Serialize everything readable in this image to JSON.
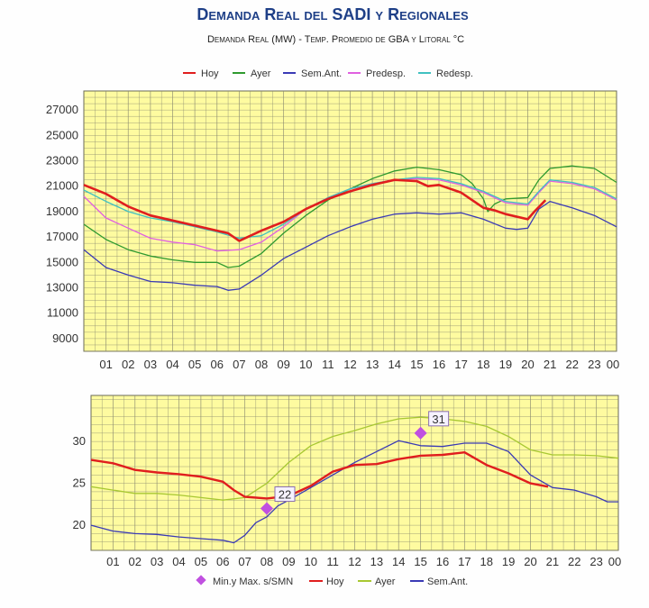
{
  "header": {
    "title": "Demanda Real del SADI y Regionales",
    "subtitle": "Demanda Real (MW) - Temp. Promedio de GBA y Litoral °C"
  },
  "colors": {
    "plot_bg": "#fefba0",
    "grid": "#8a8a70",
    "hoy": "#e01e1e",
    "ayer": "#2f9a2f",
    "ayer_temp": "#a8c832",
    "sem_ant": "#3a3ab5",
    "predesp": "#e060e0",
    "redesp": "#40c0c0",
    "marker": "#c050e0"
  },
  "chart_data": [
    {
      "type": "line",
      "ylabel": "",
      "xlabel": "",
      "ylim": [
        8000,
        28500
      ],
      "yticks": [
        9000,
        11000,
        13000,
        15000,
        17000,
        19000,
        21000,
        23000,
        25000,
        27000
      ],
      "xlim": [
        0,
        24
      ],
      "xticks": [
        "01",
        "02",
        "03",
        "04",
        "05",
        "06",
        "07",
        "08",
        "09",
        "10",
        "11",
        "12",
        "13",
        "14",
        "15",
        "16",
        "17",
        "18",
        "19",
        "20",
        "21",
        "22",
        "23",
        "00"
      ],
      "legend_position": "top",
      "series": [
        {
          "name": "Hoy",
          "key": "hoy",
          "width": 2.6,
          "x": [
            0,
            1,
            2,
            3,
            4,
            5,
            6,
            6.5,
            7,
            8,
            9,
            10,
            11,
            12,
            13,
            13.5,
            14,
            15,
            15.5,
            16,
            17,
            18,
            18.5,
            19,
            20,
            20.3,
            20.8
          ],
          "y": [
            21100,
            20400,
            19400,
            18700,
            18300,
            17900,
            17500,
            17300,
            16700,
            17500,
            18200,
            19200,
            20000,
            20600,
            21100,
            21300,
            21500,
            21400,
            21000,
            21100,
            20500,
            19300,
            19100,
            18800,
            18400,
            19000,
            19900
          ]
        },
        {
          "name": "Ayer",
          "key": "ayer",
          "width": 1.3,
          "x": [
            0,
            1,
            2,
            3,
            4,
            5,
            6,
            6.5,
            7,
            8,
            9,
            10,
            11,
            12,
            13,
            14,
            15,
            16,
            17,
            17.5,
            18,
            18.2,
            18.5,
            19,
            20,
            20.5,
            21,
            22,
            23,
            24
          ],
          "y": [
            18000,
            16800,
            16000,
            15500,
            15200,
            15000,
            15000,
            14600,
            14700,
            15700,
            17300,
            18700,
            19900,
            20800,
            21600,
            22200,
            22500,
            22300,
            21900,
            21200,
            20000,
            19000,
            19600,
            20000,
            20100,
            21500,
            22400,
            22600,
            22400,
            21300
          ]
        },
        {
          "name": "Sem.Ant.",
          "key": "sem_ant",
          "width": 1.3,
          "x": [
            0,
            1,
            2,
            3,
            4,
            5,
            6,
            6.5,
            7,
            8,
            9,
            10,
            11,
            12,
            13,
            14,
            15,
            16,
            17,
            18,
            19,
            19.5,
            20,
            20.5,
            21,
            22,
            23,
            24
          ],
          "y": [
            16000,
            14600,
            14000,
            13500,
            13400,
            13200,
            13100,
            12800,
            12900,
            14000,
            15300,
            16200,
            17100,
            17800,
            18400,
            18800,
            18900,
            18800,
            18900,
            18400,
            17700,
            17600,
            17700,
            19200,
            19800,
            19300,
            18700,
            17800
          ]
        },
        {
          "name": "Predesp.",
          "key": "predesp",
          "width": 1.3,
          "x": [
            0,
            1,
            2,
            3,
            4,
            5,
            6,
            7,
            8,
            9,
            10,
            11,
            12,
            13,
            14,
            15,
            16,
            17,
            18,
            19,
            20,
            20.5,
            21,
            22,
            23,
            24
          ],
          "y": [
            20200,
            18500,
            17700,
            16900,
            16600,
            16400,
            15900,
            16000,
            16600,
            17800,
            19200,
            20100,
            20800,
            21200,
            21500,
            21600,
            21500,
            21100,
            20500,
            19700,
            19500,
            20500,
            21400,
            21200,
            20800,
            19900
          ]
        },
        {
          "name": "Redesp.",
          "key": "redesp",
          "width": 1.3,
          "x": [
            0,
            1,
            2,
            3,
            4,
            5,
            6,
            7,
            8,
            9,
            10,
            11,
            12,
            13,
            14,
            15,
            16,
            17,
            18,
            19,
            20,
            20.5,
            21,
            22,
            23,
            24
          ],
          "y": [
            20700,
            19800,
            19000,
            18500,
            18200,
            17800,
            17400,
            16900,
            17100,
            18000,
            19200,
            20100,
            20800,
            21200,
            21500,
            21700,
            21600,
            21200,
            20600,
            19800,
            19600,
            20600,
            21500,
            21300,
            20900,
            20000
          ]
        }
      ]
    },
    {
      "type": "line",
      "ylabel": "",
      "xlabel": "",
      "ylim": [
        17,
        35.5
      ],
      "yticks": [
        20,
        25,
        30
      ],
      "xlim": [
        0,
        24
      ],
      "xticks": [
        "01",
        "02",
        "03",
        "04",
        "05",
        "06",
        "07",
        "08",
        "09",
        "10",
        "11",
        "12",
        "13",
        "14",
        "15",
        "16",
        "17",
        "18",
        "19",
        "20",
        "21",
        "22",
        "23",
        "00"
      ],
      "legend_position": "bottom",
      "series": [
        {
          "name": "Hoy",
          "key": "hoy",
          "width": 2.4,
          "x": [
            0,
            1,
            2,
            3,
            4,
            5,
            6,
            6.5,
            7,
            8,
            9,
            10,
            11,
            12,
            13,
            14,
            15,
            16,
            17,
            18,
            19,
            20,
            20.8
          ],
          "y": [
            27.8,
            27.4,
            26.6,
            26.3,
            26.1,
            25.8,
            25.2,
            24.2,
            23.4,
            23.2,
            23.5,
            24.7,
            26.4,
            27.2,
            27.3,
            27.9,
            28.3,
            28.4,
            28.7,
            27.2,
            26.2,
            25.0,
            24.6
          ]
        },
        {
          "name": "Ayer",
          "key": "ayer_temp",
          "width": 1.3,
          "x": [
            0,
            1,
            2,
            3,
            4,
            5,
            6,
            7,
            8,
            9,
            10,
            11,
            12,
            13,
            14,
            15,
            16,
            17,
            18,
            19,
            20,
            21,
            22,
            23,
            24
          ],
          "y": [
            24.6,
            24.2,
            23.8,
            23.8,
            23.6,
            23.3,
            23.0,
            23.3,
            25.0,
            27.5,
            29.5,
            30.6,
            31.3,
            32.1,
            32.7,
            32.9,
            32.7,
            32.4,
            31.8,
            30.6,
            29.0,
            28.4,
            28.4,
            28.3,
            28.0
          ]
        },
        {
          "name": "Sem.Ant.",
          "key": "sem_ant",
          "width": 1.3,
          "x": [
            0,
            1,
            2,
            3,
            4,
            5,
            6,
            6.5,
            7,
            7.5,
            8,
            8.5,
            9,
            10,
            11,
            12,
            13,
            14,
            15,
            16,
            17,
            18,
            19,
            20,
            21,
            22,
            23,
            23.5,
            24
          ],
          "y": [
            20.0,
            19.3,
            19.0,
            18.9,
            18.6,
            18.4,
            18.2,
            17.9,
            18.8,
            20.3,
            21.0,
            22.3,
            23.0,
            24.5,
            26.0,
            27.5,
            28.8,
            30.1,
            29.5,
            29.4,
            29.8,
            29.8,
            28.8,
            26.0,
            24.5,
            24.2,
            23.4,
            22.8,
            22.8
          ]
        }
      ],
      "markers": [
        {
          "x": 8,
          "y": 22,
          "label": "22"
        },
        {
          "x": 15,
          "y": 31,
          "label": "31"
        }
      ]
    }
  ],
  "legend_bottom": {
    "marker_label": "Min.y Max. s/SMN",
    "hoy": "Hoy",
    "ayer": "Ayer",
    "sem_ant": "Sem.Ant."
  }
}
